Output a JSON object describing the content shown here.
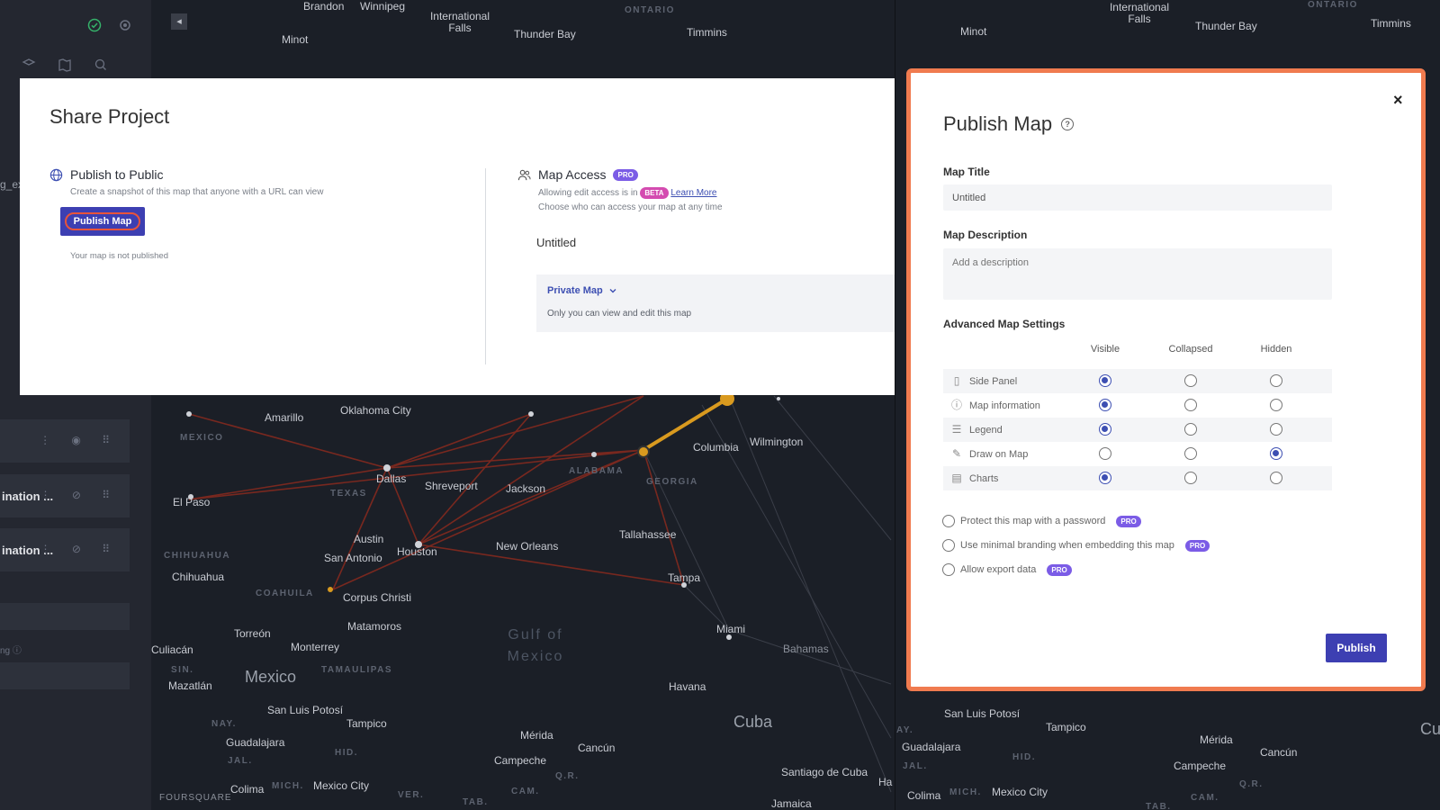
{
  "map": {
    "labels": [
      "Brandon",
      "Winnipeg",
      "International Falls",
      "ONTARIO",
      "Thunder Bay",
      "Timmins",
      "Minot",
      "Amarillo",
      "Oklahoma City",
      "MEXICO",
      "Dallas",
      "Columbia",
      "Wilmington",
      "El Paso",
      "TEXAS",
      "Shreveport",
      "Jackson",
      "ALABAMA",
      "GEORGIA",
      "Austin",
      "San Antonio",
      "Houston",
      "New Orleans",
      "Tallahassee",
      "CHIHUAHUA",
      "Chihuahua",
      "COAHUILA",
      "Corpus Christi",
      "Tampa",
      "Torreón",
      "Matamoros",
      "Miami",
      "Culiacán",
      "Monterrey",
      "Gulf of Mexico",
      "SIN.",
      "TAMAULIPAS",
      "Bahamas",
      "Mazatlán",
      "Mexico",
      "San Luis Potosí",
      "NAY.",
      "Tampico",
      "Havana",
      "Guadalajara",
      "HID.",
      "Mérida",
      "Cuba",
      "JAL.",
      "Campeche",
      "Cancún",
      "Colima",
      "MICH.",
      "Mexico City",
      "Q.R.",
      "Santiago de Cuba",
      "FOURSQUARE",
      "VER.",
      "CAM.",
      "TAB.",
      "Jamaica",
      "Ha",
      "Cu"
    ],
    "right_labels": [
      "International Falls",
      "ONTARIO",
      "Thunder Bay",
      "Timmins",
      "Minot",
      "San Luis Potosí",
      "Tampico",
      "Guadalajara",
      "HID.",
      "Mérida",
      "Cancún",
      "AY.",
      "JAL.",
      "Campeche",
      "Colima",
      "MICH.",
      "Mexico City",
      "Q.R.",
      "CAM.",
      "TAB."
    ],
    "sidebar_partial_texts": [
      "g_ex",
      "ination ...",
      "ination ...",
      "ng"
    ]
  },
  "share": {
    "title": "Share Project",
    "public": {
      "heading": "Publish to Public",
      "sub": "Create a snapshot of this map that anyone with a URL can view",
      "button": "Publish Map",
      "status": "Your map is not published"
    },
    "access": {
      "heading": "Map Access",
      "pro": "PRO",
      "line1_prefix": "Allowing edit access is in",
      "beta": "BETA",
      "learn_more": "Learn More",
      "line2": "Choose who can access your map at any time",
      "map_name": "Untitled",
      "privacy_value": "Private Map",
      "privacy_sub": "Only you can view and edit this map"
    }
  },
  "publish": {
    "title": "Publish Map",
    "title_label": "Map Title",
    "title_value": "Untitled",
    "desc_label": "Map Description",
    "desc_placeholder": "Add a description",
    "advanced_label": "Advanced Map Settings",
    "columns": [
      "Visible",
      "Collapsed",
      "Hidden"
    ],
    "rows": [
      {
        "label": "Side Panel",
        "icon": "side-panel-icon",
        "selected": "Visible"
      },
      {
        "label": "Map information",
        "icon": "info-icon",
        "selected": "Visible"
      },
      {
        "label": "Legend",
        "icon": "list-icon",
        "selected": "Visible"
      },
      {
        "label": "Draw on Map",
        "icon": "draw-icon",
        "selected": "Hidden"
      },
      {
        "label": "Charts",
        "icon": "chart-icon",
        "selected": "Visible"
      }
    ],
    "options": [
      {
        "label": "Protect this map with a password",
        "badge": "PRO",
        "checked": false
      },
      {
        "label": "Use minimal branding when embedding this map",
        "badge": "PRO",
        "checked": false
      },
      {
        "label": "Allow export data",
        "badge": "PRO",
        "checked": false
      }
    ],
    "submit": "Publish",
    "close": "×",
    "help": "?"
  },
  "colors": {
    "accent": "#3d3fb2",
    "highlight_border": "#f07b4f",
    "pro": "#7b5ce6",
    "beta": "#d44bb0"
  }
}
